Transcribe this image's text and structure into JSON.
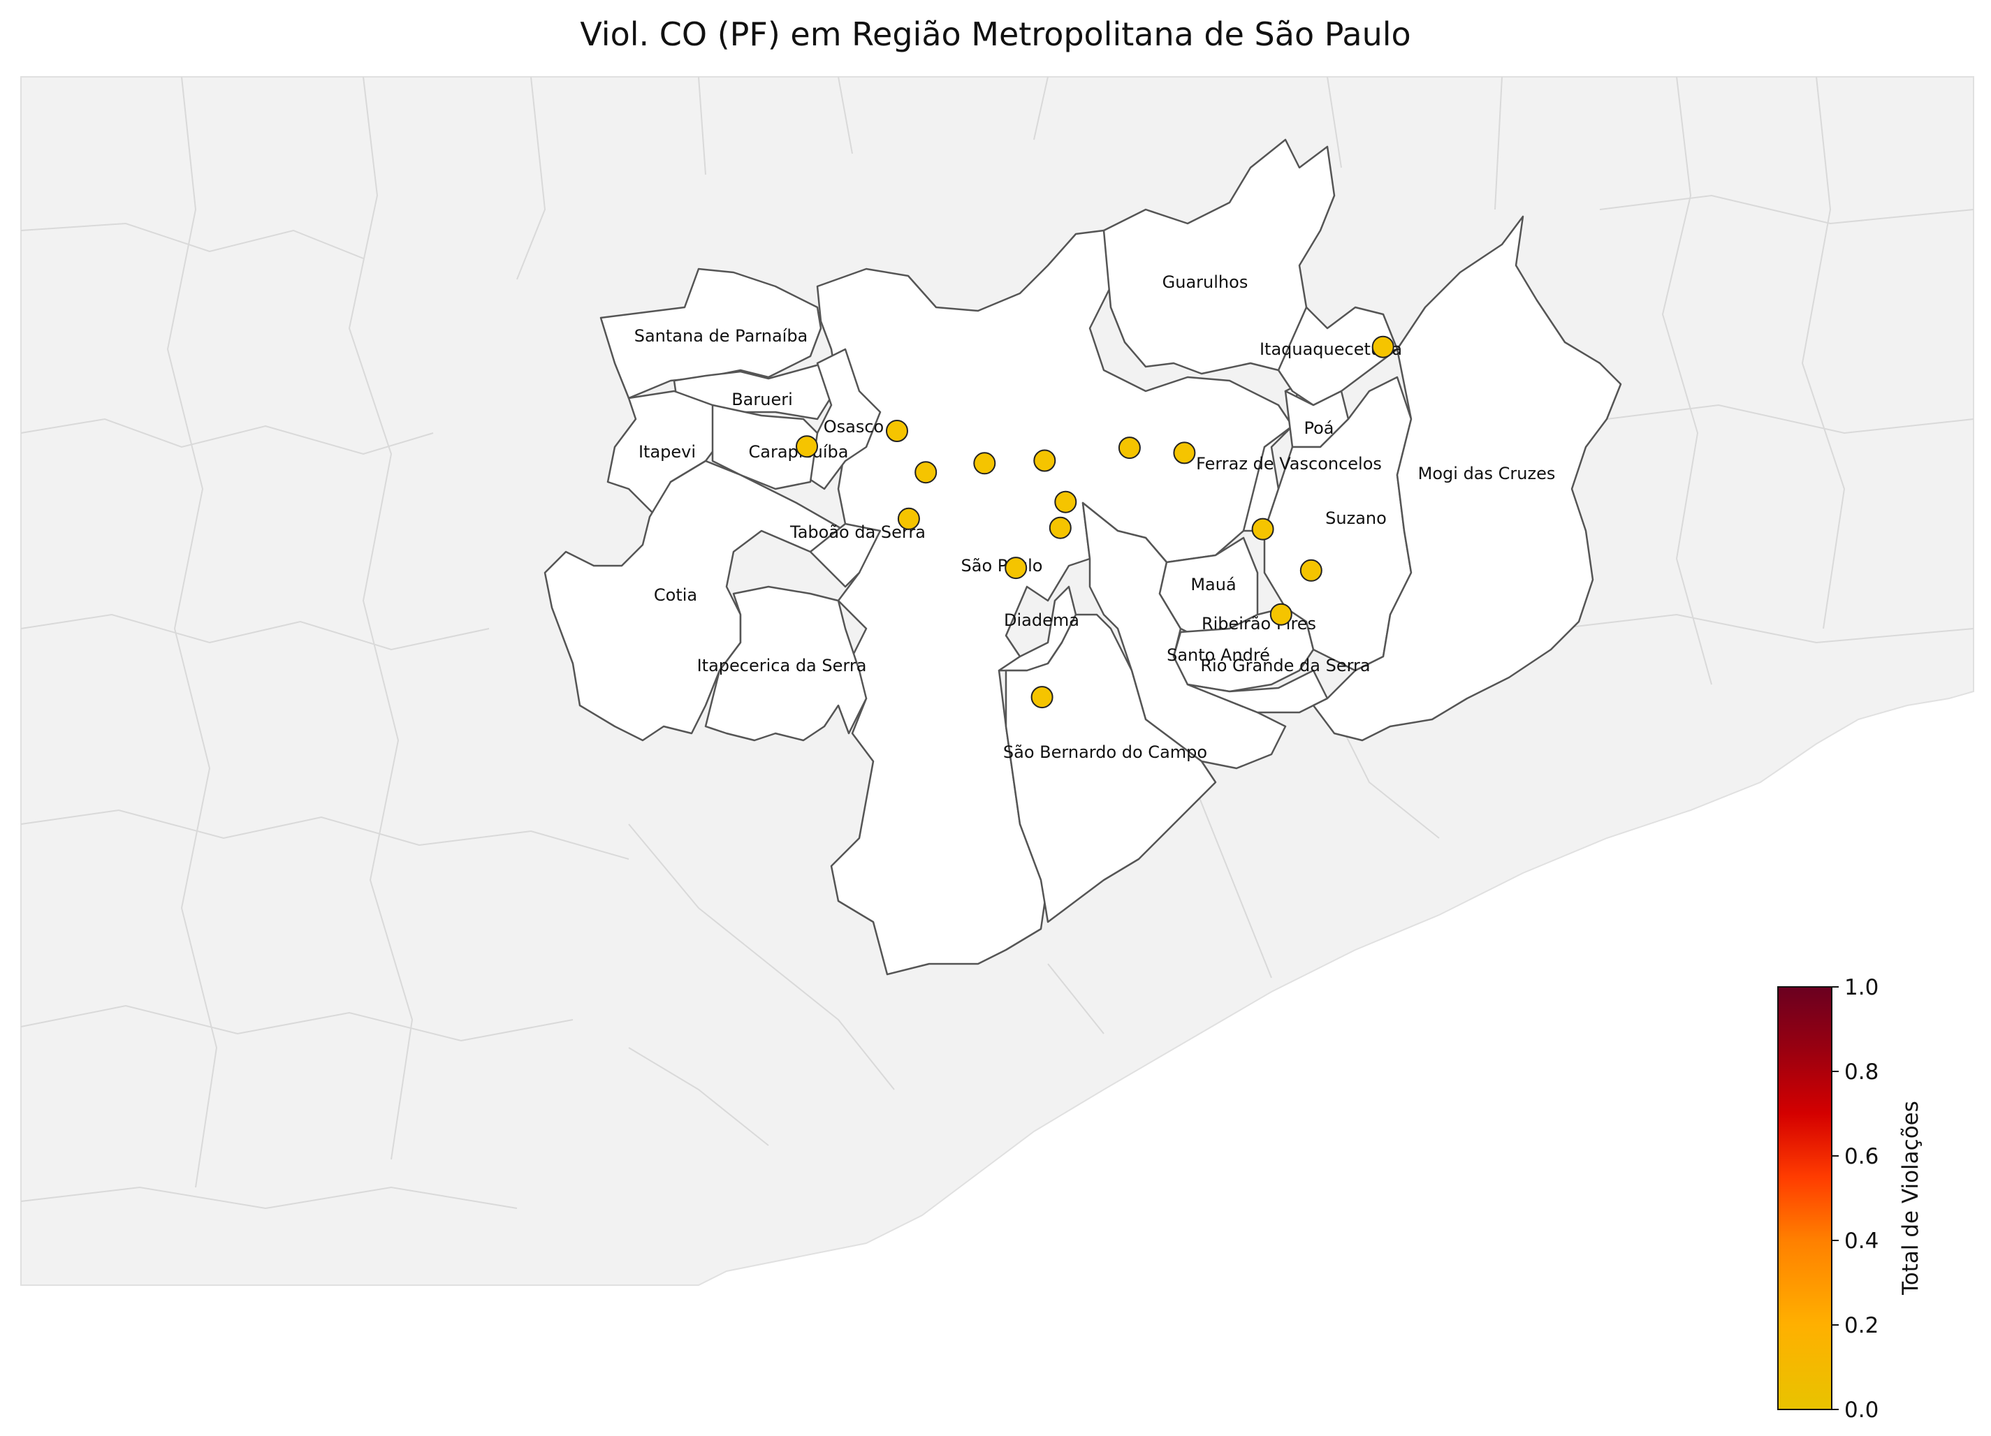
{
  "title": "Viol. CO (PF) em Região Metropolitana de São Paulo",
  "colors": {
    "background_region": "#f2f2f2",
    "background_border": "#d9d9d9",
    "metro_fill": "#ffffff",
    "metro_border": "#555555",
    "marker_fill": "#f5c400",
    "marker_stroke": "#222222",
    "colormap": [
      "#e8c300",
      "#ffb000",
      "#ff8000",
      "#ff3c00",
      "#d40000",
      "#9a0010",
      "#6a0020"
    ]
  },
  "municipality_labels": [
    "Guarulhos",
    "Itaquaquecetuba",
    "Santana de Parnaíba",
    "Barueri",
    "Osasco",
    "Itapevi",
    "Carapicuíba",
    "Poá",
    "Ferraz de Vasconcelos",
    "Mogi das Cruzes",
    "Suzano",
    "Taboão da Serra",
    "São Paulo",
    "Mauá",
    "Cotia",
    "Diadema",
    "Ribeirão Pires",
    "Santo André",
    "Rio Grande da Serra",
    "Itapecerica da Serra",
    "São Bernardo do Campo"
  ],
  "points": [
    {
      "lon": -46.391,
      "lat": -23.455
    },
    {
      "lon": -46.763,
      "lat": -23.52
    },
    {
      "lon": -46.832,
      "lat": -23.532
    },
    {
      "lon": -46.741,
      "lat": -23.552
    },
    {
      "lon": -46.696,
      "lat": -23.545
    },
    {
      "lon": -46.65,
      "lat": -23.543
    },
    {
      "lon": -46.585,
      "lat": -23.533
    },
    {
      "lon": -46.543,
      "lat": -23.537
    },
    {
      "lon": -46.634,
      "lat": -23.575
    },
    {
      "lon": -46.638,
      "lat": -23.595
    },
    {
      "lon": -46.754,
      "lat": -23.588
    },
    {
      "lon": -46.483,
      "lat": -23.596
    },
    {
      "lon": -46.672,
      "lat": -23.626
    },
    {
      "lon": -46.446,
      "lat": -23.628
    },
    {
      "lon": -46.469,
      "lat": -23.662
    },
    {
      "lon": -46.652,
      "lat": -23.726
    }
  ],
  "colorbar": {
    "label": "Total de Violações",
    "min": 0.0,
    "max": 1.0,
    "ticks": [
      "0.0",
      "0.2",
      "0.4",
      "0.6",
      "0.8",
      "1.0"
    ]
  }
}
